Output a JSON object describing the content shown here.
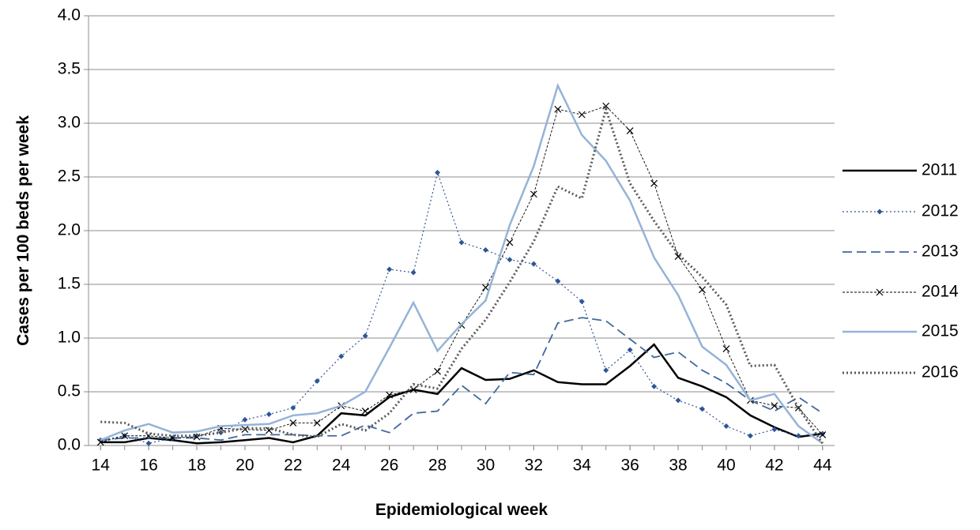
{
  "chart_data": {
    "type": "line",
    "x_label": "Epidemiological week",
    "y_label": "Cases per 100 beds per week",
    "x": [
      14,
      15,
      16,
      17,
      18,
      19,
      20,
      21,
      22,
      23,
      24,
      25,
      26,
      27,
      28,
      29,
      30,
      31,
      32,
      33,
      34,
      35,
      36,
      37,
      38,
      39,
      40,
      41,
      42,
      43,
      44
    ],
    "xlim": [
      13.5,
      44.5
    ],
    "xticks": [
      14,
      16,
      18,
      20,
      22,
      24,
      26,
      28,
      30,
      32,
      34,
      36,
      38,
      40,
      42,
      44
    ],
    "ylim": [
      0,
      4
    ],
    "yticks": [
      {
        "value": 0,
        "label": "0.0"
      },
      {
        "value": 0.5,
        "label": "0.5"
      },
      {
        "value": 1,
        "label": "1.0"
      },
      {
        "value": 1.5,
        "label": "1.5"
      },
      {
        "value": 2,
        "label": "2.0"
      },
      {
        "value": 2.5,
        "label": "2.5"
      },
      {
        "value": 3,
        "label": "3.0"
      },
      {
        "value": 3.5,
        "label": "3.5"
      },
      {
        "value": 4,
        "label": "4.0"
      }
    ],
    "grid": true,
    "legend": "right",
    "series": [
      {
        "name": "2011",
        "color": "#000000",
        "line_style": "solid",
        "width": 2.5,
        "marker": "none",
        "values": [
          0.03,
          0.03,
          0.07,
          0.05,
          0.02,
          0.03,
          0.05,
          0.07,
          0.03,
          0.09,
          0.3,
          0.28,
          0.45,
          0.52,
          0.48,
          0.72,
          0.61,
          0.62,
          0.7,
          0.59,
          0.57,
          0.57,
          0.74,
          0.94,
          0.63,
          0.55,
          0.45,
          0.28,
          0.17,
          0.08,
          0.11
        ]
      },
      {
        "name": "2012",
        "color": "#2f5597",
        "line_style": "dotted",
        "width": 1.2,
        "marker": "diamond",
        "values": [
          0.05,
          0.09,
          0.02,
          0.07,
          0.09,
          0.12,
          0.24,
          0.29,
          0.35,
          0.6,
          0.83,
          1.02,
          1.64,
          1.61,
          2.54,
          1.89,
          1.82,
          1.73,
          1.69,
          1.53,
          1.34,
          0.7,
          0.89,
          0.55,
          0.42,
          0.34,
          0.18,
          0.09,
          0.15,
          0.09,
          0.11
        ]
      },
      {
        "name": "2013",
        "color": "#41689c",
        "line_style": "dashed",
        "width": 1.8,
        "marker": "none",
        "values": [
          0.05,
          0.07,
          0.07,
          0.07,
          0.07,
          0.05,
          0.1,
          0.1,
          0.1,
          0.09,
          0.09,
          0.19,
          0.12,
          0.3,
          0.32,
          0.56,
          0.39,
          0.68,
          0.66,
          1.14,
          1.19,
          1.16,
          0.99,
          0.82,
          0.87,
          0.7,
          0.58,
          0.42,
          0.32,
          0.45,
          0.3
        ]
      },
      {
        "name": "2014",
        "color": "#000000",
        "line_style": "dashdot",
        "width": 0.9,
        "marker": "x",
        "values": [
          0.03,
          0.09,
          0.09,
          0.07,
          0.08,
          0.16,
          0.15,
          0.14,
          0.21,
          0.21,
          0.37,
          0.32,
          0.47,
          0.52,
          0.69,
          1.12,
          1.47,
          1.89,
          2.34,
          3.13,
          3.08,
          3.16,
          2.93,
          2.44,
          1.76,
          1.45,
          0.9,
          0.42,
          0.37,
          0.35,
          0.1
        ]
      },
      {
        "name": "2015",
        "color": "#95b3d7",
        "line_style": "solid",
        "width": 2.5,
        "marker": "none",
        "values": [
          0.05,
          0.14,
          0.2,
          0.12,
          0.13,
          0.18,
          0.19,
          0.2,
          0.28,
          0.3,
          0.37,
          0.5,
          0.91,
          1.33,
          0.88,
          1.13,
          1.35,
          2.05,
          2.6,
          3.35,
          2.89,
          2.65,
          2.28,
          1.75,
          1.4,
          0.92,
          0.75,
          0.42,
          0.48,
          0.18,
          0.02
        ]
      },
      {
        "name": "2016",
        "color": "#595959",
        "line_style": "dotted",
        "width": 3,
        "marker": "none",
        "values": [
          0.22,
          0.21,
          0.11,
          0.09,
          0.09,
          0.12,
          0.16,
          0.16,
          0.1,
          0.08,
          0.2,
          0.14,
          0.3,
          0.57,
          0.53,
          0.9,
          1.17,
          1.52,
          1.9,
          2.41,
          2.3,
          3.13,
          2.44,
          2.09,
          1.78,
          1.57,
          1.31,
          0.74,
          0.75,
          0.35,
          0.02
        ]
      }
    ]
  }
}
